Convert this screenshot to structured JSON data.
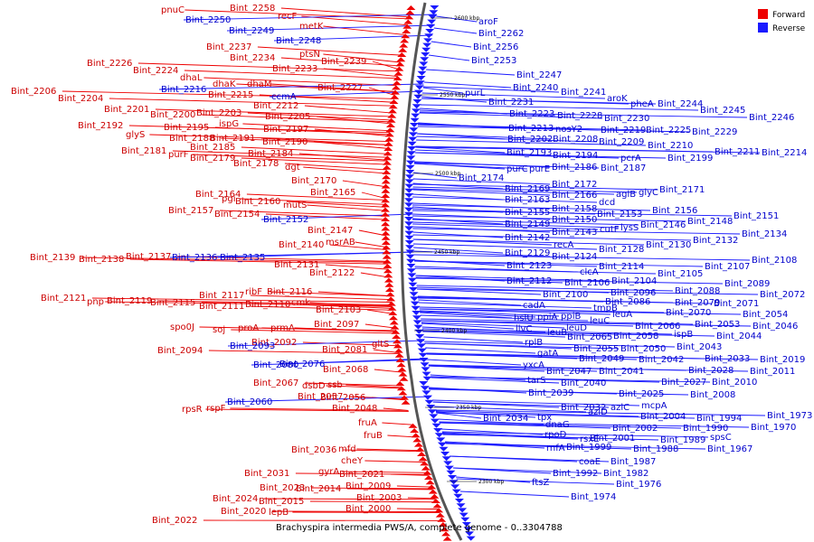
{
  "caption": "Brachyspira intermedia PWS/A, complete genome - 0..3304788",
  "legend": [
    {
      "label": "Forward",
      "color": "#ee0000"
    },
    {
      "label": "Reverse",
      "color": "#1a1aff"
    }
  ],
  "colors": {
    "forward": "#ee0000",
    "reverse": "#1a1aff",
    "backbone": "#555555"
  },
  "ticks": [
    "2600 kbp",
    "2550 kbp",
    "2500 kbp",
    "2450 kbp",
    "2400 kbp",
    "2350 kbp",
    "2300 kbp"
  ],
  "forward_labels": [
    "pnuC",
    "Bint_2258",
    "recF",
    "metK",
    "Bint_2237",
    "ptsN",
    "Bint_2234",
    "Bint_2239",
    "Bint_2233",
    "Bint_2226",
    "Bint_2224",
    "dhaL",
    "dhaK",
    "dhaM",
    "Bint_2227",
    "Bint_2206",
    "Bint_2215",
    "Bint_2204",
    "Bint_2212",
    "Bint_2201",
    "Bint_2200",
    "Bint_2203",
    "Bint_2205",
    "Bint_2192",
    "Bint_2195",
    "ispG",
    "Bint_2197",
    "glyS",
    "Bint_2188",
    "Bint_2191",
    "Bint_2190",
    "Bint_2185",
    "Bint_2181",
    "purF",
    "Bint_2179",
    "Bint_2184",
    "Bint_2178",
    "dgt",
    "Bint_2170",
    "Bint_2164",
    "pgi",
    "Bint_2165",
    "Bint_2160",
    "mutS",
    "Bint_2157",
    "Bint_2154",
    "Bint_2147",
    "Bint_2140",
    "msrAB",
    "Bint_2139",
    "Bint_2138",
    "Bint_2137",
    "Bint_2131",
    "Bint_2122",
    "Bint_2121",
    "ribF",
    "Bint_2116",
    "pnp",
    "Bint_2119",
    "Bint_2117",
    "Bint_2115",
    "Bint_2111",
    "Bint_2110",
    "cmk",
    "Bint_2103",
    "spo0J",
    "soj",
    "proA",
    "prmA",
    "Bint_2097",
    "Bint_2094",
    "Bint_2092",
    "Bint_2081",
    "gltS",
    "Bint_2068",
    "Bint_2067",
    "dsbD",
    "ssb",
    "Bint_2057",
    "Bint_2056",
    "rpsR",
    "rspF",
    "Bint_2048",
    "fruA",
    "fruB",
    "Bint_2036",
    "mfd",
    "cheY",
    "Bint_2031",
    "gyrA",
    "Bint_2021",
    "Bint_2014",
    "Bint_2009",
    "Bint_2023",
    "Bint_2024",
    "Bint_2015",
    "Bint_2003",
    "Bint_2020",
    "lepB",
    "Bint_2000",
    "Bint_2022"
  ],
  "reverse_labels": [
    "Bint_2250",
    "Bint_2249",
    "Bint_2248",
    "aroF",
    "Bint_2262",
    "Bint_2256",
    "Bint_2253",
    "Bint_2216",
    "ccmA",
    "Bint_2247",
    "Bint_2240",
    "Bint_2241",
    "purL",
    "aroK",
    "pheA",
    "Bint_2244",
    "Bint_2231",
    "Bint_2245",
    "Bint_2246",
    "Bint_2223",
    "Bint_2228",
    "Bint_2230",
    "Bint_2213",
    "nosY2",
    "Bint_2219",
    "Bint_2225",
    "Bint_2229",
    "Bint_2202",
    "Bint_2208",
    "Bint_2209",
    "Bint_2210",
    "Bint_2193",
    "Bint_2194",
    "pcrA",
    "Bint_2199",
    "Bint_2211",
    "Bint_2214",
    "purC",
    "purE",
    "Bint_2186",
    "Bint_2187",
    "Bint_2174",
    "Bint_2172",
    "Bint_2169",
    "Bint_2166",
    "dcd",
    "aglB",
    "glyC",
    "Bint_2171",
    "Bint_2163",
    "Bint_2155",
    "Bint_2158",
    "Bint_2153",
    "Bint_2156",
    "Bint_2152",
    "Bint_2149",
    "Bint_2150",
    "cutF",
    "lysS",
    "Bint_2146",
    "Bint_2148",
    "Bint_2151",
    "Bint_2142",
    "Bint_2143",
    "Bint_2136",
    "Bint_2135",
    "recA",
    "Bint_2128",
    "Bint_2130",
    "Bint_2132",
    "Bint_2134",
    "Bint_2129",
    "Bint_2124",
    "Bint_2123",
    "Bint_2114",
    "Bint_2105",
    "Bint_2107",
    "Bint_2108",
    "clcA",
    "Bint_2112",
    "Bint_2106",
    "Bint_2104",
    "Bint_2089",
    "Bint_2100",
    "Bint_2096",
    "Bint_2088",
    "Bint_2072",
    "cadA",
    "tmpB",
    "Bint_2086",
    "Bint_2079",
    "Bint_2071",
    "hslU",
    "ppiA",
    "ppiB",
    "leuA",
    "Bint_2070",
    "Bint_2054",
    "ilvC",
    "leuB",
    "leuD",
    "leuC",
    "Bint_2066",
    "Bint_2053",
    "Bint_2046",
    "rplB",
    "Bint_2065",
    "Bint_2058",
    "ispB",
    "Bint_2044",
    "Bint_2093",
    "Bint_2055",
    "Bint_2050",
    "Bint_2043",
    "gatA",
    "Bint_2049",
    "Bint_2042",
    "Bint_2033",
    "Bint_2019",
    "Bint_2080",
    "Bint_2076",
    "yxcA",
    "Bint_2047",
    "Bint_2041",
    "Bint_2028",
    "Bint_2011",
    "tarS",
    "Bint_2040",
    "Bint_2027",
    "Bint_2010",
    "Bint_2039",
    "Bint_2025",
    "Bint_2008",
    "Bint_2060",
    "Bint_2032",
    "azlC",
    "mcpA",
    "Bint_2034",
    "tpx",
    "azlD",
    "Bint_2004",
    "Bint_1994",
    "Bint_1973",
    "dnaG",
    "Bint_2002",
    "Bint_1990",
    "Bint_1970",
    "rpoD",
    "rsxE",
    "Bint_2001",
    "Bint_1989",
    "spsC",
    "rnfA",
    "Bint_1999",
    "Bint_1988",
    "Bint_1967",
    "coaE",
    "Bint_1987",
    "ftsZ",
    "Bint_1992",
    "Bint_1982",
    "Bint_1976",
    "Bint_1974"
  ]
}
